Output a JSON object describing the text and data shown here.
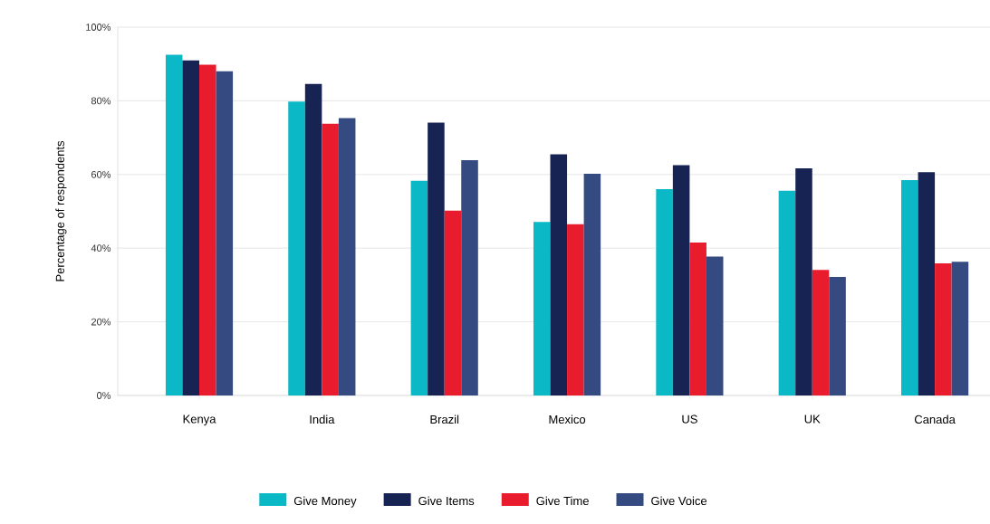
{
  "chart_data": {
    "type": "bar",
    "ylabel": "Percentage of respondents",
    "categories": [
      "Kenya",
      "India",
      "Brazil",
      "Mexico",
      "US",
      "UK",
      "Canada"
    ],
    "series": [
      {
        "name": "Give Money",
        "color": "#0ab8c6",
        "values": [
          92.5,
          79.8,
          58.3,
          47.1,
          56.0,
          55.6,
          58.5
        ]
      },
      {
        "name": "Give Items",
        "color": "#172453",
        "values": [
          91.0,
          84.6,
          74.1,
          65.5,
          62.5,
          61.7,
          60.6
        ]
      },
      {
        "name": "Give Time",
        "color": "#e91c2e",
        "values": [
          89.8,
          73.8,
          50.2,
          46.5,
          41.5,
          34.1,
          35.9
        ]
      },
      {
        "name": "Give Voice",
        "color": "#344a80",
        "values": [
          88.0,
          75.3,
          63.9,
          60.2,
          37.7,
          32.2,
          36.3
        ]
      }
    ],
    "ylim": [
      0,
      100
    ],
    "yticks": [
      {
        "value": 0,
        "label": "0%"
      },
      {
        "value": 20,
        "label": "20%"
      },
      {
        "value": 40,
        "label": "40%"
      },
      {
        "value": 60,
        "label": "60%"
      },
      {
        "value": 80,
        "label": "80%"
      },
      {
        "value": 100,
        "label": "100%"
      }
    ],
    "grid": "y",
    "legend": "bottom"
  }
}
